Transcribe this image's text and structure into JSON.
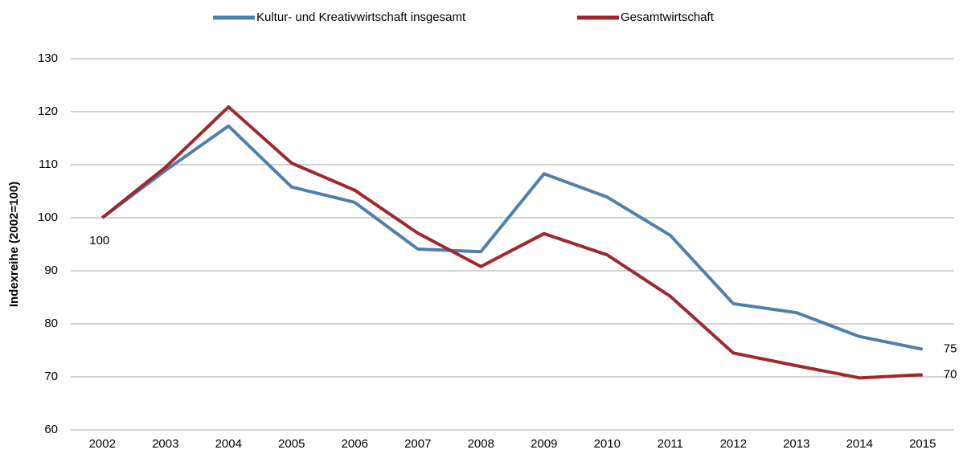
{
  "chart_data": {
    "type": "line",
    "y_label": "Indexreihe (2002=100)",
    "categories": [
      "2002",
      "2003",
      "2004",
      "2005",
      "2006",
      "2007",
      "2008",
      "2009",
      "2010",
      "2011",
      "2012",
      "2013",
      "2014",
      "2015"
    ],
    "series": [
      {
        "name": "Kultur- und Kreativwirtschaft insgesamt",
        "color": "#4f80ad",
        "values": [
          100,
          108.9,
          117.3,
          105.8,
          102.9,
          94.1,
          93.6,
          108.3,
          103.9,
          96.7,
          83.8,
          82.1,
          77.6,
          75.2
        ],
        "value_labels": [
          "100",
          null,
          null,
          null,
          null,
          null,
          null,
          null,
          null,
          null,
          null,
          null,
          null,
          "75"
        ]
      },
      {
        "name": "Gesamtwirtschaft",
        "color": "#a0282b",
        "values": [
          100,
          109.5,
          120.9,
          110.3,
          105.2,
          97.1,
          90.8,
          97.0,
          93.0,
          85.2,
          74.5,
          72.1,
          69.8,
          70.4
        ],
        "value_labels": [
          null,
          null,
          null,
          null,
          null,
          null,
          null,
          null,
          null,
          null,
          null,
          null,
          null,
          "70"
        ]
      }
    ],
    "ylim": [
      60,
      130
    ],
    "yticks": [
      60,
      70,
      80,
      90,
      100,
      110,
      120,
      130
    ],
    "grid": true,
    "legend": "top"
  }
}
